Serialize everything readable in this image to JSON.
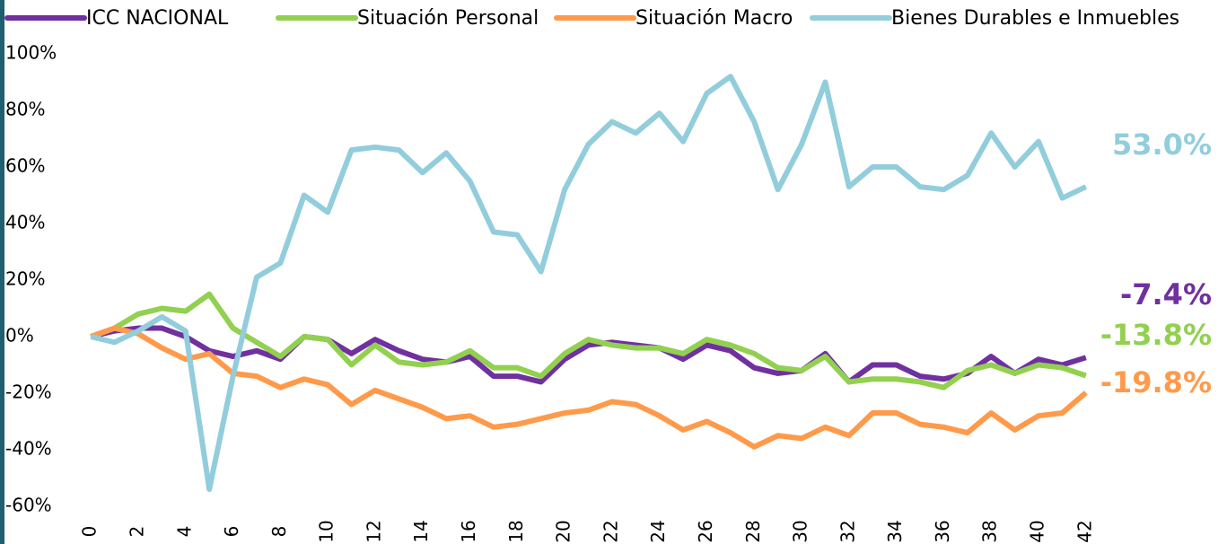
{
  "chart_data": {
    "type": "line",
    "x": [
      0,
      1,
      2,
      3,
      4,
      5,
      6,
      7,
      8,
      9,
      10,
      11,
      12,
      13,
      14,
      15,
      16,
      17,
      18,
      19,
      20,
      21,
      22,
      23,
      24,
      25,
      26,
      27,
      28,
      29,
      30,
      31,
      32,
      33,
      34,
      35,
      36,
      37,
      38,
      39,
      40,
      41,
      42
    ],
    "xlim": [
      -0.5,
      42.5
    ],
    "xticks": [
      0,
      2,
      4,
      6,
      8,
      10,
      12,
      14,
      16,
      18,
      20,
      22,
      24,
      26,
      28,
      30,
      32,
      34,
      36,
      38,
      40,
      42
    ],
    "ylim": [
      -60,
      100
    ],
    "yticks": [
      {
        "value": -60,
        "label": "-60%"
      },
      {
        "value": -40,
        "label": "-40%"
      },
      {
        "value": -20,
        "label": "-20%"
      },
      {
        "value": 0,
        "label": "0%"
      },
      {
        "value": 20,
        "label": "20%"
      },
      {
        "value": 40,
        "label": "40%"
      },
      {
        "value": 60,
        "label": "60%"
      },
      {
        "value": 80,
        "label": "80%"
      },
      {
        "value": 100,
        "label": "100%"
      }
    ],
    "series": [
      {
        "name": "ICC NACIONAL",
        "color": "#7030a0",
        "end_label": "-7.4%",
        "values": [
          0,
          2,
          3,
          3,
          0,
          -5,
          -7,
          -5,
          -8,
          0,
          -1,
          -6,
          -1,
          -5,
          -8,
          -9,
          -7,
          -14,
          -14,
          -16,
          -8,
          -3,
          -2,
          -3,
          -4,
          -8,
          -3,
          -5,
          -11,
          -13,
          -12,
          -6,
          -16,
          -10,
          -10,
          -14,
          -15,
          -13,
          -7,
          -13,
          -8,
          -10,
          -7.4
        ]
      },
      {
        "name": "Situación Personal",
        "color": "#92d050",
        "end_label": "-13.8%",
        "values": [
          0,
          3,
          8,
          10,
          9,
          15,
          3,
          -2,
          -7,
          0,
          -1,
          -10,
          -3,
          -9,
          -10,
          -9,
          -5,
          -11,
          -11,
          -14,
          -6,
          -1,
          -3,
          -4,
          -4,
          -6,
          -1,
          -3,
          -6,
          -11,
          -12,
          -7,
          -16,
          -15,
          -15,
          -16,
          -18,
          -12,
          -10,
          -13,
          -10,
          -11,
          -13.8
        ]
      },
      {
        "name": "Situación Macro",
        "color": "#ff9a4a",
        "end_label": "-19.8%",
        "values": [
          0,
          3,
          1,
          -4,
          -8,
          -6,
          -13,
          -14,
          -18,
          -15,
          -17,
          -24,
          -19,
          -22,
          -25,
          -29,
          -28,
          -32,
          -31,
          -29,
          -27,
          -26,
          -23,
          -24,
          -28,
          -33,
          -30,
          -34,
          -39,
          -35,
          -36,
          -32,
          -35,
          -27,
          -27,
          -31,
          -32,
          -34,
          -27,
          -33,
          -28,
          -27,
          -19.8
        ]
      },
      {
        "name": "Bienes Durables e Inmuebles",
        "color": "#92cddc",
        "end_label": "53.0%",
        "values": [
          0,
          -2,
          2,
          7,
          2,
          -54,
          -14,
          21,
          26,
          50,
          44,
          66,
          67,
          66,
          58,
          65,
          55,
          37,
          36,
          23,
          52,
          68,
          76,
          72,
          79,
          69,
          86,
          92,
          76,
          52,
          68,
          90,
          53,
          60,
          60,
          53,
          52,
          57,
          72,
          60,
          69,
          49,
          53.0
        ]
      }
    ]
  }
}
